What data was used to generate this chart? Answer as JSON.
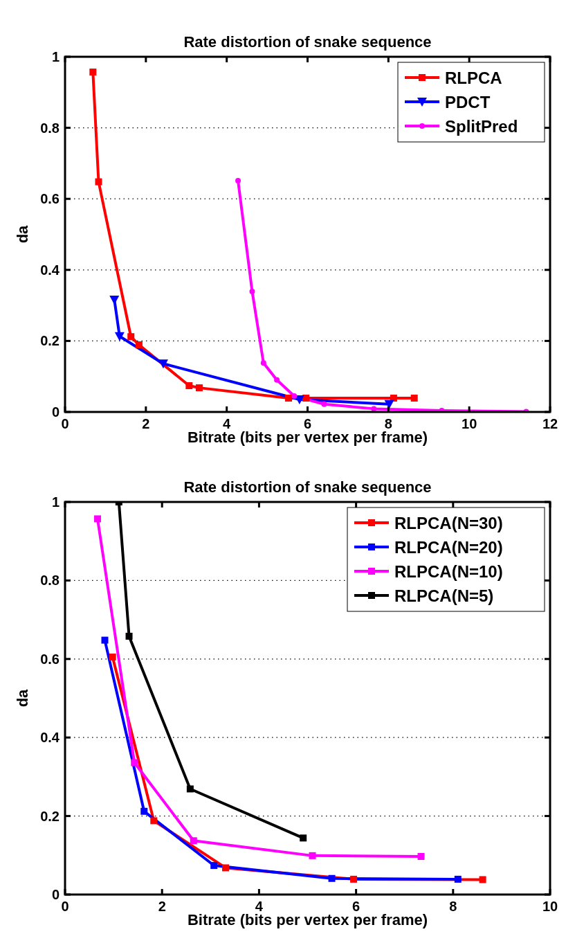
{
  "chart_data": [
    {
      "type": "line",
      "title": "Rate distortion of snake sequence",
      "xlabel": "Bitrate (bits per vertex per frame)",
      "ylabel": "da",
      "xlim": [
        0,
        12
      ],
      "xticks": [
        0,
        2,
        4,
        6,
        8,
        10,
        12
      ],
      "ylim": [
        0,
        1
      ],
      "yticks": [
        0,
        0.2,
        0.4,
        0.6,
        0.8,
        1
      ],
      "grid": "y",
      "legend": "top right",
      "line_style": "solid",
      "series": [
        {
          "name": "RLPCA",
          "color": "#ff0000",
          "marker": "square",
          "x": [
            0.69,
            0.83,
            1.63,
            1.83,
            3.07,
            3.32,
            5.53,
            5.96,
            8.13,
            8.64
          ],
          "values": [
            0.957,
            0.648,
            0.212,
            0.189,
            0.074,
            0.068,
            0.039,
            0.039,
            0.039,
            0.039
          ]
        },
        {
          "name": "PDCT",
          "color": "#0000ff",
          "marker": "triangle",
          "x": [
            1.22,
            1.35,
            2.43,
            5.8,
            8.02
          ],
          "values": [
            0.316,
            0.213,
            0.136,
            0.035,
            0.022
          ]
        },
        {
          "name": "SplitPred",
          "color": "#ff00ff",
          "marker": "circle",
          "x": [
            4.28,
            4.63,
            4.91,
            5.24,
            5.67,
            6.41,
            7.64,
            9.32,
            11.41
          ],
          "values": [
            0.651,
            0.339,
            0.138,
            0.09,
            0.045,
            0.022,
            0.009,
            0.004,
            0.001
          ]
        }
      ]
    },
    {
      "type": "line",
      "title": "Rate distortion of snake sequence",
      "xlabel": "Bitrate (bits per vertex per frame)",
      "ylabel": "da",
      "xlim": [
        0,
        10
      ],
      "xticks": [
        0,
        2,
        4,
        6,
        8,
        10
      ],
      "ylim": [
        0,
        1
      ],
      "yticks": [
        0,
        0.2,
        0.4,
        0.6,
        0.8,
        1
      ],
      "grid": "y",
      "legend": "top right",
      "line_style": "solid",
      "marker": "square",
      "series": [
        {
          "name": "RLPCA(N=30)",
          "color": "#ff0000",
          "x": [
            0.98,
            1.83,
            3.31,
            5.95,
            8.61
          ],
          "values": [
            0.605,
            0.188,
            0.068,
            0.039,
            0.038
          ]
        },
        {
          "name": "RLPCA(N=20)",
          "color": "#0000ff",
          "x": [
            0.82,
            1.63,
            3.07,
            5.5,
            8.1
          ],
          "values": [
            0.648,
            0.212,
            0.074,
            0.041,
            0.039
          ]
        },
        {
          "name": "RLPCA(N=10)",
          "color": "#ff00ff",
          "x": [
            0.67,
            1.43,
            2.65,
            5.1,
            7.34
          ],
          "values": [
            0.957,
            0.336,
            0.137,
            0.099,
            0.097
          ]
        },
        {
          "name": "RLPCA(N=5)",
          "color": "#000000",
          "x": [
            1.11,
            1.32,
            2.58,
            4.91
          ],
          "values": [
            1.0,
            0.658,
            0.269,
            0.144
          ]
        }
      ]
    }
  ]
}
